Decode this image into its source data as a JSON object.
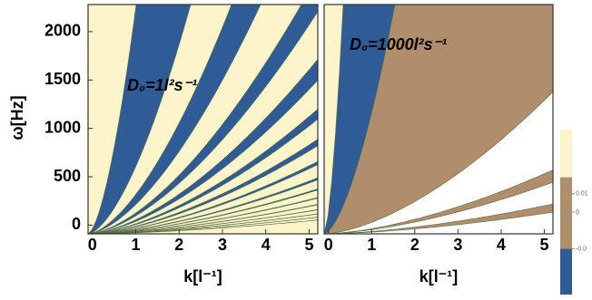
{
  "chart_data": [
    {
      "type": "contour",
      "annotation": "D₀=1l²s⁻¹",
      "xlabel": "k[l⁻¹]",
      "ylabel": "ω[Hz]",
      "xlim": [
        -0.1,
        5.2
      ],
      "xticks": [
        0,
        1,
        2,
        3,
        4,
        5
      ],
      "ylim": [
        -90,
        2280
      ],
      "yticks": [
        0,
        500,
        1000,
        1500,
        2000
      ]
    },
    {
      "type": "contour",
      "annotation": "D₀=1000l²s⁻¹",
      "xlabel": "k[l⁻¹]",
      "xlim": [
        -0.1,
        5.2
      ],
      "xticks": [
        0,
        1,
        2,
        3,
        4,
        5
      ],
      "ylim": [
        -90,
        2280
      ]
    }
  ],
  "colorbar": {
    "levels": [
      -0.045,
      -0.02,
      0.019,
      0.045
    ],
    "colors": [
      "#2f5c96",
      "#b08d6b",
      "#fdf5c9"
    ],
    "ticks": [
      {
        "value": 0.01,
        "label": "0.01"
      },
      0,
      {
        "value": -0.02,
        "label": "-0.0"
      }
    ]
  }
}
